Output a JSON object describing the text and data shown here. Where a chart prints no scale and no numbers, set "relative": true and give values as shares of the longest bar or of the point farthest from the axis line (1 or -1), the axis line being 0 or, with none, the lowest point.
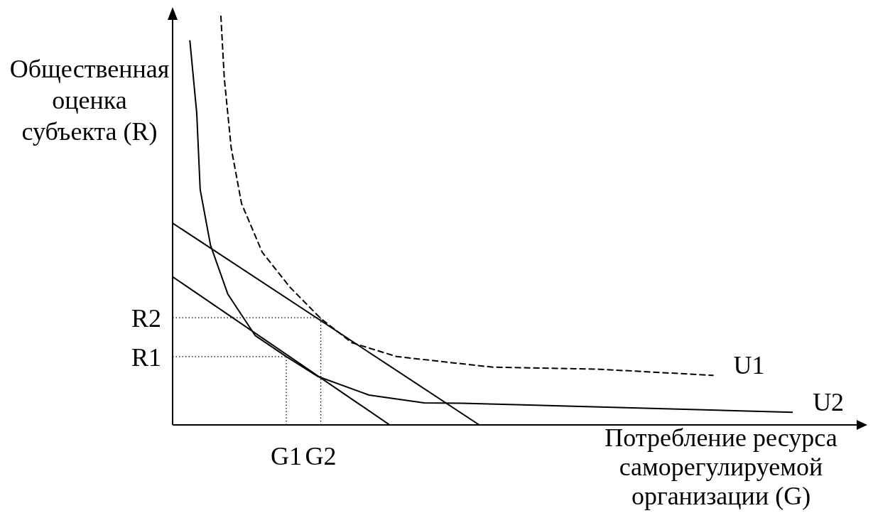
{
  "chart_data": {
    "type": "line",
    "relative": true,
    "xlabel": "Потребление ресурса саморегулируемой организации (G)",
    "ylabel": "Общественная оценка субъекта (R)",
    "legend": false,
    "grid": false,
    "marker": "none",
    "categories": [
      null,
      null,
      null,
      null,
      null,
      null,
      null,
      null,
      null,
      null,
      null,
      null,
      null,
      null,
      null,
      null,
      null,
      null,
      null,
      null,
      null,
      null,
      null,
      null,
      null,
      null,
      null,
      null,
      null,
      null,
      null,
      null,
      null,
      "G1",
      null,
      null,
      null,
      null,
      null,
      null,
      null,
      null,
      null,
      "G2",
      null,
      null,
      null,
      null,
      null,
      null,
      null,
      null,
      null,
      null,
      null,
      null,
      null,
      null,
      null,
      null,
      null,
      null,
      null,
      null,
      null,
      null,
      null,
      null,
      null,
      null,
      null,
      null,
      null,
      null,
      null,
      null,
      null,
      null,
      null,
      null,
      null,
      null,
      null,
      null,
      null,
      null,
      null,
      null,
      null,
      null,
      null,
      null,
      null,
      null,
      null,
      null,
      null,
      null,
      null,
      null,
      null,
      null,
      null,
      null,
      null,
      null,
      null,
      null,
      null,
      null,
      null,
      null,
      null,
      null,
      null,
      null,
      null,
      null,
      null,
      null,
      null,
      null,
      null,
      null,
      null,
      null,
      null,
      null,
      null,
      null,
      null,
      null,
      null,
      null,
      null,
      null,
      null,
      null,
      null,
      null,
      null,
      null,
      null,
      null,
      null,
      null,
      null,
      null,
      null,
      null,
      null,
      null,
      null,
      null,
      null,
      null,
      null,
      null,
      null,
      null,
      null,
      null,
      null,
      null,
      null,
      null,
      null,
      null,
      null,
      null,
      null,
      null,
      null,
      null,
      null,
      null,
      null,
      null,
      null,
      null,
      null,
      null,
      null,
      null,
      null,
      null,
      null,
      null,
      null,
      null,
      null,
      null,
      null,
      null,
      null,
      null,
      null,
      null,
      null,
      null,
      null,
      null
    ],
    "series": [
      {
        "name": "U1",
        "color": "#000000",
        "line_style": "dashed",
        "values": [
          null,
          null,
          null,
          null,
          null,
          null,
          null,
          null,
          null,
          null,
          null,
          null,
          null,
          null,
          1.0,
          0.847,
          null,
          0.677,
          null,
          null,
          0.541,
          null,
          null,
          null,
          null,
          null,
          0.422,
          null,
          null,
          null,
          null,
          null,
          null,
          null,
          0.337,
          null,
          null,
          null,
          null,
          null,
          null,
          null,
          null,
          0.26,
          null,
          null,
          null,
          null,
          null,
          null,
          null,
          null,
          0.201,
          null,
          null,
          null,
          null,
          null,
          null,
          null,
          null,
          null,
          null,
          null,
          null,
          0.167,
          null,
          null,
          null,
          null,
          null,
          null,
          null,
          null,
          null,
          null,
          null,
          null,
          null,
          null,
          null,
          null,
          null,
          null,
          null,
          null,
          null,
          null,
          null,
          null,
          null,
          null,
          null,
          0.141,
          null,
          null,
          null,
          null,
          null,
          null,
          null,
          null,
          null,
          null,
          null,
          null,
          null,
          null,
          null,
          null,
          null,
          null,
          null,
          null,
          null,
          null,
          null,
          null,
          null,
          null,
          null,
          null,
          null,
          null,
          0.136,
          null,
          null,
          null,
          null,
          null,
          null,
          null,
          null,
          null,
          null,
          null,
          null,
          null,
          null,
          null,
          null,
          null,
          null,
          null,
          null,
          null,
          null,
          null,
          null,
          null,
          null,
          null,
          null,
          null,
          null,
          null,
          null,
          0.121,
          null,
          null,
          null,
          null,
          null,
          null,
          null,
          null,
          null,
          null,
          null,
          null,
          null,
          null,
          null,
          null,
          null,
          null,
          null,
          null,
          null,
          null,
          null,
          null,
          null,
          null,
          null,
          null,
          null,
          null,
          null,
          null,
          null,
          null,
          null,
          null,
          null,
          null,
          null,
          null,
          null,
          null,
          null,
          null
        ]
      },
      {
        "name": "U2",
        "color": "#000000",
        "line_style": "solid",
        "values": [
          null,
          null,
          null,
          null,
          null,
          0.94,
          null,
          0.762,
          0.575,
          null,
          null,
          0.439,
          null,
          null,
          null,
          null,
          0.32,
          null,
          null,
          null,
          null,
          null,
          null,
          null,
          0.218,
          null,
          null,
          null,
          null,
          null,
          null,
          null,
          null,
          0.167,
          null,
          null,
          null,
          null,
          null,
          null,
          null,
          null,
          0.119,
          null,
          null,
          null,
          null,
          null,
          null,
          null,
          null,
          null,
          null,
          null,
          null,
          null,
          null,
          0.073,
          null,
          null,
          null,
          null,
          null,
          null,
          null,
          null,
          null,
          null,
          null,
          null,
          null,
          null,
          null,
          0.054,
          null,
          null,
          null,
          null,
          null,
          null,
          null,
          null,
          null,
          null,
          0.053,
          null,
          null,
          null,
          null,
          null,
          null,
          null,
          null,
          null,
          null,
          null,
          null,
          null,
          null,
          null,
          null,
          null,
          null,
          null,
          null,
          null,
          null,
          null,
          null,
          null,
          null,
          null,
          null,
          null,
          null,
          null,
          null,
          null,
          null,
          null,
          null,
          null,
          null,
          null,
          null,
          null,
          null,
          null,
          null,
          null,
          null,
          null,
          null,
          null,
          null,
          null,
          null,
          null,
          null,
          null,
          null,
          null,
          null,
          null,
          null,
          null,
          null,
          null,
          null,
          null,
          null,
          null,
          null,
          null,
          null,
          null,
          null,
          null,
          null,
          null,
          null,
          null,
          null,
          null,
          null,
          null,
          null,
          null,
          null,
          null,
          null,
          null,
          null,
          null,
          null,
          null,
          null,
          null,
          null,
          null,
          0.031,
          null,
          null,
          null,
          null,
          null,
          null,
          null,
          null,
          null,
          null,
          null,
          null,
          null,
          null,
          null,
          null,
          null,
          null,
          null,
          null,
          null
        ]
      },
      {
        "color": "#000000",
        "line_style": "solid",
        "values": [
          0.493,
          null,
          null,
          null,
          null,
          null,
          null,
          null,
          null,
          null,
          null,
          null,
          null,
          null,
          null,
          null,
          null,
          null,
          null,
          null,
          null,
          null,
          null,
          null,
          null,
          null,
          null,
          null,
          null,
          null,
          null,
          null,
          null,
          null,
          null,
          null,
          null,
          null,
          null,
          null,
          null,
          null,
          null,
          null,
          null,
          null,
          null,
          null,
          null,
          null,
          null,
          null,
          null,
          null,
          null,
          null,
          null,
          null,
          null,
          null,
          null,
          null,
          null,
          null,
          null,
          null,
          null,
          null,
          null,
          null,
          null,
          null,
          null,
          null,
          null,
          null,
          null,
          null,
          null,
          null,
          null,
          null,
          null,
          null,
          null,
          null,
          null,
          null,
          null,
          0,
          null,
          null,
          null,
          null,
          null,
          null,
          null,
          null,
          null,
          null,
          null,
          null,
          null,
          null,
          null,
          null,
          null,
          null,
          null,
          null,
          null,
          null,
          null,
          null,
          null,
          null,
          null,
          null,
          null,
          null,
          null,
          null,
          null,
          null,
          null,
          null,
          null,
          null,
          null,
          null,
          null,
          null,
          null,
          null,
          null,
          null,
          null,
          null,
          null,
          null,
          null,
          null,
          null,
          null,
          null,
          null,
          null,
          null,
          null,
          null,
          null,
          null,
          null,
          null,
          null,
          null,
          null,
          null,
          null,
          null,
          null,
          null,
          null,
          null,
          null,
          null,
          null,
          null,
          null,
          null,
          null,
          null,
          null,
          null,
          null,
          null,
          null,
          null,
          null,
          null,
          null,
          null,
          null,
          null,
          null,
          null,
          null,
          null,
          null,
          null,
          null,
          null,
          null,
          null,
          null,
          null,
          null,
          null,
          null,
          null,
          null,
          null
        ]
      },
      {
        "color": "#000000",
        "line_style": "solid",
        "values": [
          0.362,
          null,
          null,
          null,
          null,
          null,
          null,
          null,
          null,
          null,
          null,
          null,
          null,
          null,
          null,
          null,
          null,
          null,
          null,
          null,
          null,
          null,
          null,
          null,
          null,
          null,
          null,
          null,
          null,
          null,
          null,
          null,
          null,
          null,
          null,
          null,
          null,
          null,
          null,
          null,
          null,
          null,
          null,
          null,
          null,
          null,
          null,
          null,
          null,
          null,
          null,
          null,
          null,
          null,
          null,
          null,
          null,
          null,
          null,
          null,
          null,
          null,
          null,
          0,
          null,
          null,
          null,
          null,
          null,
          null,
          null,
          null,
          null,
          null,
          null,
          null,
          null,
          null,
          null,
          null,
          null,
          null,
          null,
          null,
          null,
          null,
          null,
          null,
          null,
          null,
          null,
          null,
          null,
          null,
          null,
          null,
          null,
          null,
          null,
          null,
          null,
          null,
          null,
          null,
          null,
          null,
          null,
          null,
          null,
          null,
          null,
          null,
          null,
          null,
          null,
          null,
          null,
          null,
          null,
          null,
          null,
          null,
          null,
          null,
          null,
          null,
          null,
          null,
          null,
          null,
          null,
          null,
          null,
          null,
          null,
          null,
          null,
          null,
          null,
          null,
          null,
          null,
          null,
          null,
          null,
          null,
          null,
          null,
          null,
          null,
          null,
          null,
          null,
          null,
          null,
          null,
          null,
          null,
          null,
          null,
          null,
          null,
          null,
          null,
          null,
          null,
          null,
          null,
          null,
          null,
          null,
          null,
          null,
          null,
          null,
          null,
          null,
          null,
          null,
          null,
          null,
          null,
          null,
          null,
          null,
          null,
          null,
          null,
          null,
          null,
          null,
          null,
          null,
          null,
          null,
          null,
          null,
          null,
          null,
          null,
          null,
          null
        ]
      }
    ],
    "ref_lines": [
      {
        "axis": "y",
        "value": 0.262,
        "label": "R2",
        "line_style": "dotted",
        "color": "#000000"
      },
      {
        "axis": "x",
        "value": "G2",
        "line_style": "dotted",
        "color": "#000000"
      },
      {
        "axis": "y",
        "value": 0.167,
        "label": "R1",
        "line_style": "dotted",
        "color": "#000000"
      },
      {
        "axis": "x",
        "value": "G1",
        "line_style": "dotted",
        "color": "#000000"
      }
    ]
  }
}
